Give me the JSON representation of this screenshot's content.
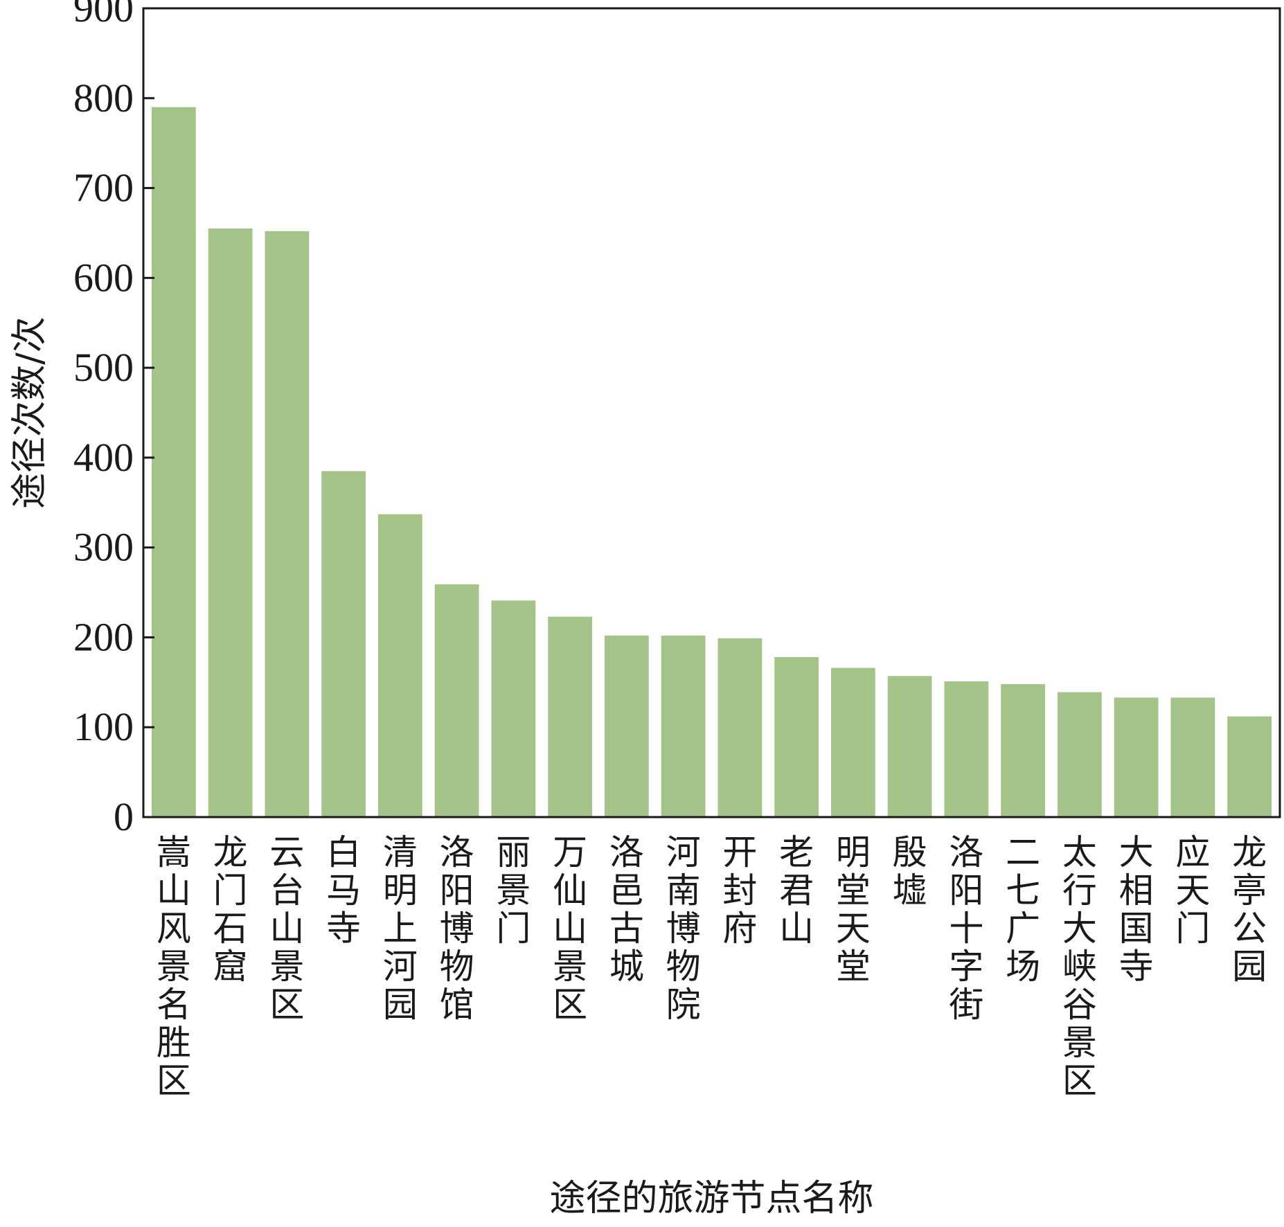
{
  "chart_data": {
    "type": "bar",
    "title": "",
    "xlabel": "途径的旅游节点名称",
    "ylabel": "途径次数/次",
    "ylim": [
      0,
      900
    ],
    "yticks": [
      0,
      100,
      200,
      300,
      400,
      500,
      600,
      700,
      800,
      900
    ],
    "grid": false,
    "bar_color": "#a3c389",
    "categories": [
      "嵩山风景名胜区",
      "龙门石窟",
      "云台山景区",
      "白马寺",
      "清明上河园",
      "洛阳博物馆",
      "丽景门",
      "万仙山景区",
      "洛邑古城",
      "河南博物院",
      "开封府",
      "老君山",
      "明堂天堂",
      "殷墟",
      "洛阳十字街",
      "二七广场",
      "太行大峡谷景区",
      "大相国寺",
      "应天门",
      "龙亭公园"
    ],
    "values": [
      790,
      655,
      652,
      385,
      337,
      259,
      241,
      223,
      202,
      202,
      199,
      178,
      166,
      157,
      151,
      148,
      139,
      133,
      133,
      112
    ]
  }
}
